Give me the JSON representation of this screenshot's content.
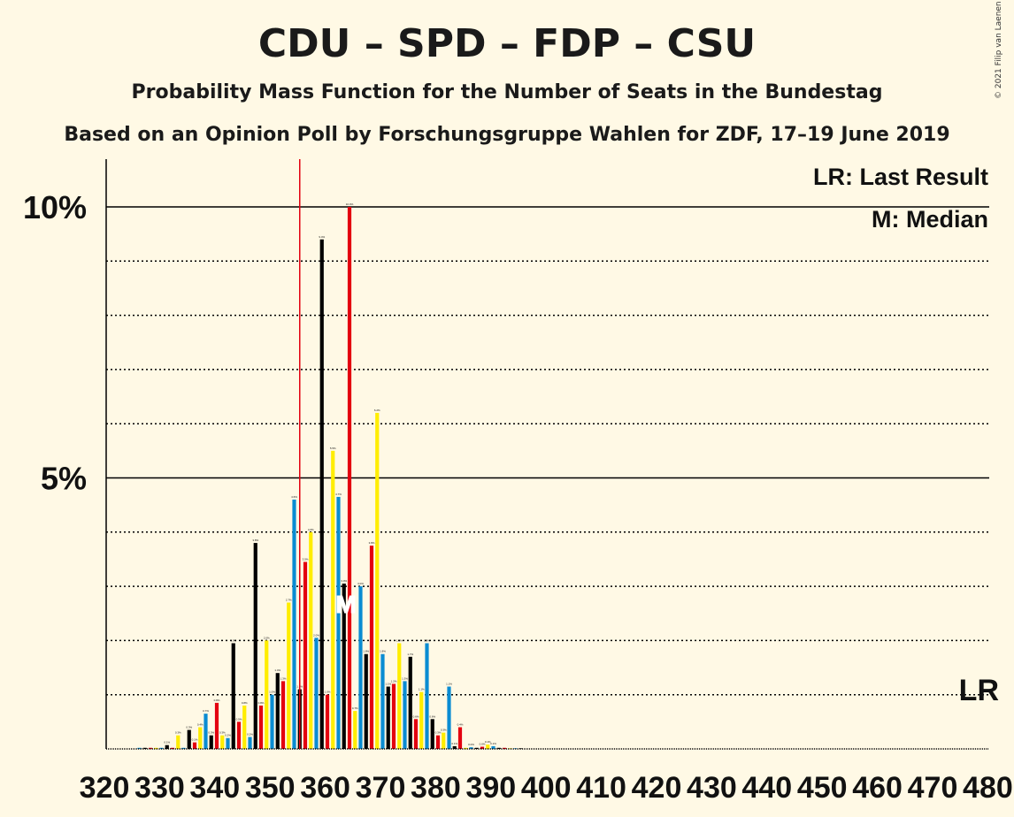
{
  "title": "CDU – SPD – FDP – CSU",
  "subtitle": "Probability Mass Function for the Number of Seats in the Bundestag",
  "source": "Based on an Opinion Poll by Forschungsgruppe Wahlen for ZDF, 17–19 June 2019",
  "copyright": "© 2021 Filip van Laenen",
  "legend": {
    "lr": "LR: Last Result",
    "median": "M: Median"
  },
  "markers": {
    "lr_label": "LR",
    "median_label": "M"
  },
  "colors": {
    "background": "#FFF9E5",
    "series": [
      "#E3000F",
      "#FFED00",
      "#0A8CD2",
      "#000000"
    ],
    "last_result_line": "#E3000F"
  },
  "chart_data": {
    "type": "bar",
    "xlabel": "",
    "ylabel": "",
    "ylim": [
      0,
      10.8
    ],
    "yticks_major": [
      5,
      10
    ],
    "ytick_labels": [
      "5%",
      "10%"
    ],
    "yticks_minor": [
      1,
      2,
      3,
      4,
      6,
      7,
      8,
      9
    ],
    "x_range": [
      320,
      480
    ],
    "x_tick_labels": [
      "320",
      "330",
      "340",
      "350",
      "360",
      "370",
      "380",
      "390",
      "400",
      "410",
      "420",
      "430",
      "440",
      "450",
      "460",
      "470",
      "480"
    ],
    "last_result": 355,
    "median": 364,
    "seats": [
      320,
      321,
      322,
      323,
      324,
      325,
      326,
      327,
      328,
      329,
      330,
      331,
      332,
      333,
      334,
      335,
      336,
      337,
      338,
      339,
      340,
      341,
      342,
      343,
      344,
      345,
      346,
      347,
      348,
      349,
      350,
      351,
      352,
      353,
      354,
      355,
      356,
      357,
      358,
      359,
      360,
      361,
      362,
      363,
      364,
      365,
      366,
      367,
      368,
      369,
      370,
      371,
      372,
      373,
      374,
      375,
      376,
      377,
      378,
      379,
      380,
      381,
      382,
      383,
      384,
      385,
      386,
      387,
      388,
      389,
      390,
      391,
      392,
      393,
      394,
      395,
      396,
      397,
      398,
      399,
      400
    ],
    "values": [
      0,
      0,
      0,
      0,
      0,
      0,
      0.02,
      0.02,
      0.02,
      0.02,
      0.02,
      0.07,
      0.02,
      0.25,
      0.02,
      0.35,
      0.12,
      0.4,
      0.65,
      0.25,
      0.85,
      0.25,
      0.2,
      1.95,
      0.5,
      0.8,
      0.22,
      3.8,
      0.8,
      2.0,
      1.0,
      1.4,
      1.25,
      2.7,
      4.6,
      1.1,
      3.45,
      4.0,
      2.05,
      9.4,
      1.0,
      5.5,
      4.65,
      3.05,
      10.0,
      0.7,
      3.0,
      1.75,
      3.75,
      6.2,
      1.75,
      1.15,
      1.2,
      1.95,
      1.25,
      1.7,
      0.55,
      1.05,
      1.95,
      0.55,
      0.25,
      0.3,
      1.15,
      0.05,
      0.4,
      0.02,
      0.03,
      0.02,
      0.04,
      0.08,
      0.05,
      0.02,
      0.02,
      0.01,
      0.01,
      0.01,
      0,
      0,
      0,
      0,
      0
    ]
  }
}
